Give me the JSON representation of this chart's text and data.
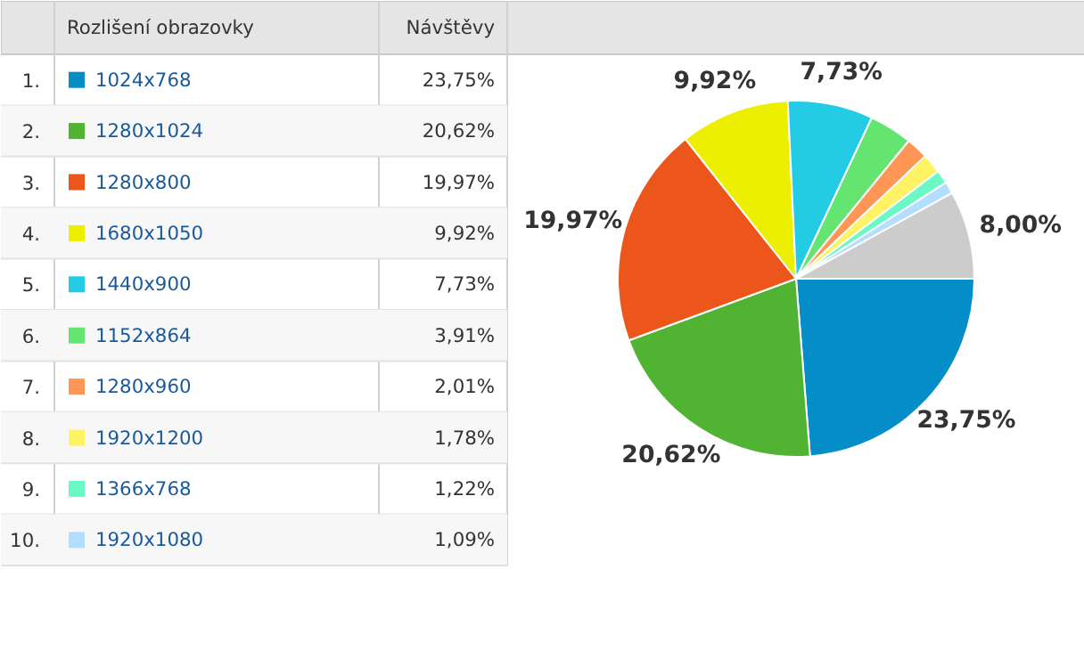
{
  "chart_data": {
    "type": "pie",
    "legend_title": "Rozlišení obrazovky",
    "ylabel": "Návštěvy",
    "legend": "left",
    "categories": [
      "1024x768",
      "1280x1024",
      "1280x800",
      "1680x1050",
      "1440x900",
      "1152x864",
      "1280x960",
      "1920x1200",
      "1366x768",
      "1920x1080",
      null
    ],
    "values": [
      23.75,
      20.62,
      19.97,
      9.92,
      7.73,
      3.91,
      2.01,
      1.78,
      1.22,
      1.09,
      8.0
    ],
    "value_labels": [
      "23,75%",
      "20,62%",
      "19,97%",
      "9,92%",
      "7,73%",
      "3,91%",
      "2,01%",
      "1,78%",
      "1,22%",
      "1,09%",
      "8,00%"
    ],
    "colors": [
      "#058dc7",
      "#50b432",
      "#ed561b",
      "#edef00",
      "#24cbe5",
      "#64e572",
      "#ff9655",
      "#fff263",
      "#6af9c4",
      "#b2deff",
      "#cccccc"
    ],
    "annotations": [
      "1.",
      "2.",
      "3.",
      "4.",
      "5.",
      "6.",
      "7.",
      "8.",
      "9.",
      "10."
    ]
  }
}
